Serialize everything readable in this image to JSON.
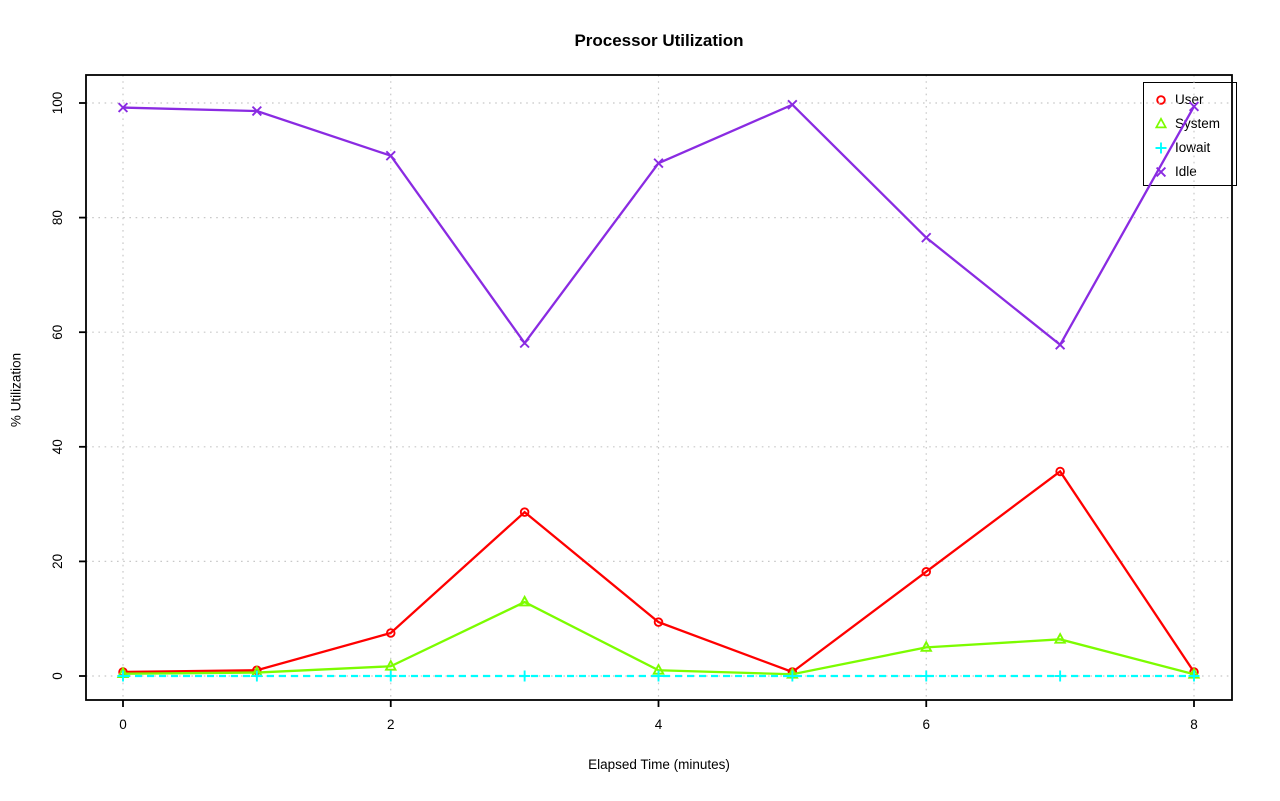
{
  "chart_data": {
    "type": "line",
    "title": "Processor Utilization",
    "xlabel": "Elapsed Time (minutes)",
    "ylabel": "% Utilization",
    "x": [
      0,
      1,
      2,
      3,
      4,
      5,
      6,
      7,
      8
    ],
    "xlim": [
      0,
      8
    ],
    "ylim": [
      0,
      100
    ],
    "axis_range_padding": "4%",
    "xticks": [
      0,
      2,
      4,
      6,
      8
    ],
    "xtick_labels": [
      "0",
      "2",
      "4",
      "6",
      "8"
    ],
    "yticks": [
      0,
      20,
      40,
      60,
      80,
      100
    ],
    "ytick_labels": [
      "0",
      "20",
      "40",
      "60",
      "80",
      "100"
    ],
    "grid": {
      "visible": true,
      "style": "dotted",
      "color": "#c8c8c8",
      "at_x": [
        0,
        2,
        4,
        6,
        8
      ],
      "at_y": [
        0,
        20,
        40,
        60,
        80,
        100
      ]
    },
    "legend_position": "top-right",
    "series": [
      {
        "name": "User",
        "color": "#ff0000",
        "marker": "circle",
        "linestyle": "solid",
        "values": [
          0.7,
          1.0,
          7.5,
          28.6,
          9.4,
          0.7,
          18.2,
          35.7,
          0.7
        ]
      },
      {
        "name": "System",
        "color": "#7cfc00",
        "marker": "triangle",
        "linestyle": "solid",
        "values": [
          0.4,
          0.6,
          1.7,
          12.9,
          1.0,
          0.3,
          5.0,
          6.4,
          0.3
        ]
      },
      {
        "name": "Iowait",
        "color": "#00ffff",
        "marker": "plus",
        "linestyle": "dashed",
        "values": [
          0,
          0,
          0,
          0,
          0,
          0,
          0,
          0,
          0
        ]
      },
      {
        "name": "Idle",
        "color": "#8a2be2",
        "marker": "x",
        "linestyle": "solid",
        "values": [
          99.2,
          98.6,
          90.8,
          58.1,
          89.5,
          99.7,
          76.5,
          57.8,
          99.4
        ]
      }
    ]
  }
}
